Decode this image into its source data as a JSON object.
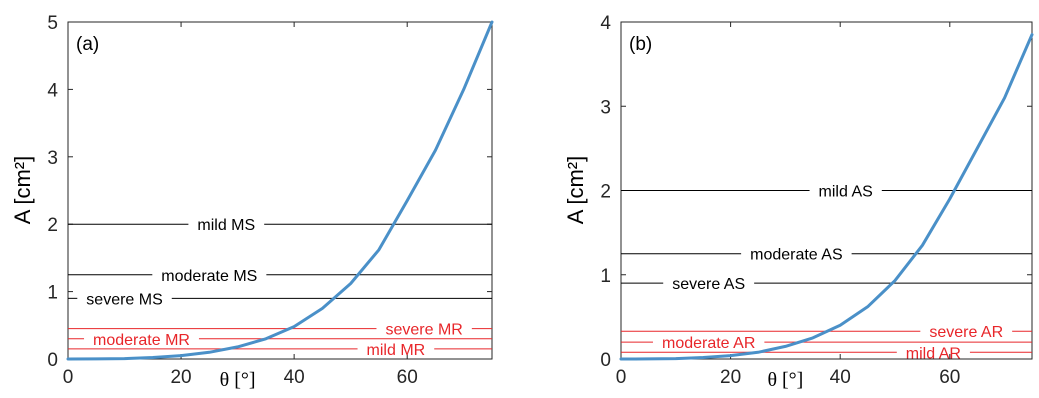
{
  "chart_data": [
    {
      "type": "line",
      "panel_label": "(a)",
      "xlabel": "θ [°]",
      "ylabel": "A [cm²]",
      "xlim": [
        0,
        75
      ],
      "ylim": [
        0,
        5
      ],
      "xticks": [
        0,
        20,
        40,
        60
      ],
      "yticks": [
        0,
        1,
        2,
        3,
        4,
        5
      ],
      "curve": {
        "color": "#4a90c8",
        "x": [
          0,
          5,
          10,
          15,
          20,
          25,
          30,
          35,
          40,
          45,
          50,
          55,
          60,
          65,
          70,
          75
        ],
        "y": [
          0.0,
          0.001,
          0.006,
          0.022,
          0.05,
          0.1,
          0.18,
          0.3,
          0.48,
          0.75,
          1.12,
          1.62,
          2.35,
          3.1,
          4.0,
          5.0
        ]
      },
      "thresholds": [
        {
          "label": "mild MS",
          "y": 2.0,
          "color": "#000000",
          "label_x": 28
        },
        {
          "label": "moderate MS",
          "y": 1.25,
          "color": "#000000",
          "label_x": 25
        },
        {
          "label": "severe MS",
          "y": 0.9,
          "color": "#000000",
          "label_x": 10
        },
        {
          "label": "severe MR",
          "y": 0.45,
          "color": "#e8262a",
          "label_x": 63
        },
        {
          "label": "moderate MR",
          "y": 0.3,
          "color": "#e8262a",
          "label_x": 13
        },
        {
          "label": "mild MR",
          "y": 0.15,
          "color": "#e8262a",
          "label_x": 58
        }
      ]
    },
    {
      "type": "line",
      "panel_label": "(b)",
      "xlabel": "θ [°]",
      "ylabel": "A [cm²]",
      "xlim": [
        0,
        75
      ],
      "ylim": [
        0,
        4
      ],
      "xticks": [
        0,
        20,
        40,
        60
      ],
      "yticks": [
        0,
        1,
        2,
        3,
        4
      ],
      "curve": {
        "color": "#4a90c8",
        "x": [
          0,
          5,
          10,
          15,
          20,
          25,
          30,
          35,
          40,
          45,
          50,
          55,
          60,
          65,
          70,
          75
        ],
        "y": [
          0.0,
          0.001,
          0.005,
          0.018,
          0.04,
          0.08,
          0.15,
          0.25,
          0.4,
          0.62,
          0.93,
          1.35,
          1.9,
          2.5,
          3.1,
          3.85
        ]
      },
      "thresholds": [
        {
          "label": "mild AS",
          "y": 2.0,
          "color": "#000000",
          "label_x": 41
        },
        {
          "label": "moderate AS",
          "y": 1.25,
          "color": "#000000",
          "label_x": 32
        },
        {
          "label": "severe AS",
          "y": 0.9,
          "color": "#000000",
          "label_x": 16
        },
        {
          "label": "severe AR",
          "y": 0.33,
          "color": "#e8262a",
          "label_x": 63
        },
        {
          "label": "moderate AR",
          "y": 0.2,
          "color": "#e8262a",
          "label_x": 16
        },
        {
          "label": "mild AR",
          "y": 0.08,
          "color": "#e8262a",
          "label_x": 57
        }
      ]
    }
  ]
}
